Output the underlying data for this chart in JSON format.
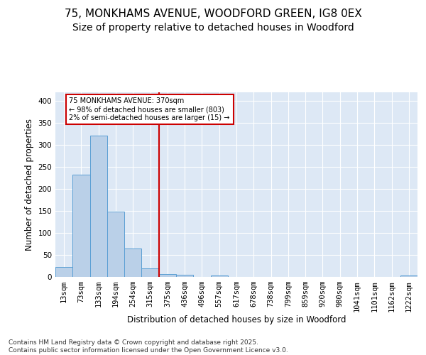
{
  "title_line1": "75, MONKHAMS AVENUE, WOODFORD GREEN, IG8 0EX",
  "title_line2": "Size of property relative to detached houses in Woodford",
  "xlabel": "Distribution of detached houses by size in Woodford",
  "ylabel": "Number of detached properties",
  "footnote": "Contains HM Land Registry data © Crown copyright and database right 2025.\nContains public sector information licensed under the Open Government Licence v3.0.",
  "categories": [
    "13sqm",
    "73sqm",
    "133sqm",
    "194sqm",
    "254sqm",
    "315sqm",
    "375sqm",
    "436sqm",
    "496sqm",
    "557sqm",
    "617sqm",
    "678sqm",
    "738sqm",
    "799sqm",
    "859sqm",
    "920sqm",
    "980sqm",
    "1041sqm",
    "1101sqm",
    "1162sqm",
    "1222sqm"
  ],
  "values": [
    22,
    233,
    322,
    149,
    65,
    20,
    7,
    5,
    0,
    4,
    0,
    0,
    0,
    0,
    0,
    0,
    0,
    0,
    0,
    0,
    3
  ],
  "bar_color": "#bad0e8",
  "bar_edge_color": "#5a9fd4",
  "annotation_line1": "75 MONKHAMS AVENUE: 370sqm",
  "annotation_line2": "← 98% of detached houses are smaller (803)",
  "annotation_line3": "2% of semi-detached houses are larger (15) →",
  "annotation_box_color": "#ffffff",
  "annotation_box_edge": "#cc0000",
  "vline_color": "#cc0000",
  "vline_x": 6,
  "ylim": [
    0,
    420
  ],
  "yticks": [
    0,
    50,
    100,
    150,
    200,
    250,
    300,
    350,
    400
  ],
  "fig_background": "#ffffff",
  "plot_background": "#dde8f5",
  "title_fontsize": 11,
  "subtitle_fontsize": 10,
  "axis_label_fontsize": 8.5,
  "tick_fontsize": 7.5,
  "footnote_fontsize": 6.5
}
